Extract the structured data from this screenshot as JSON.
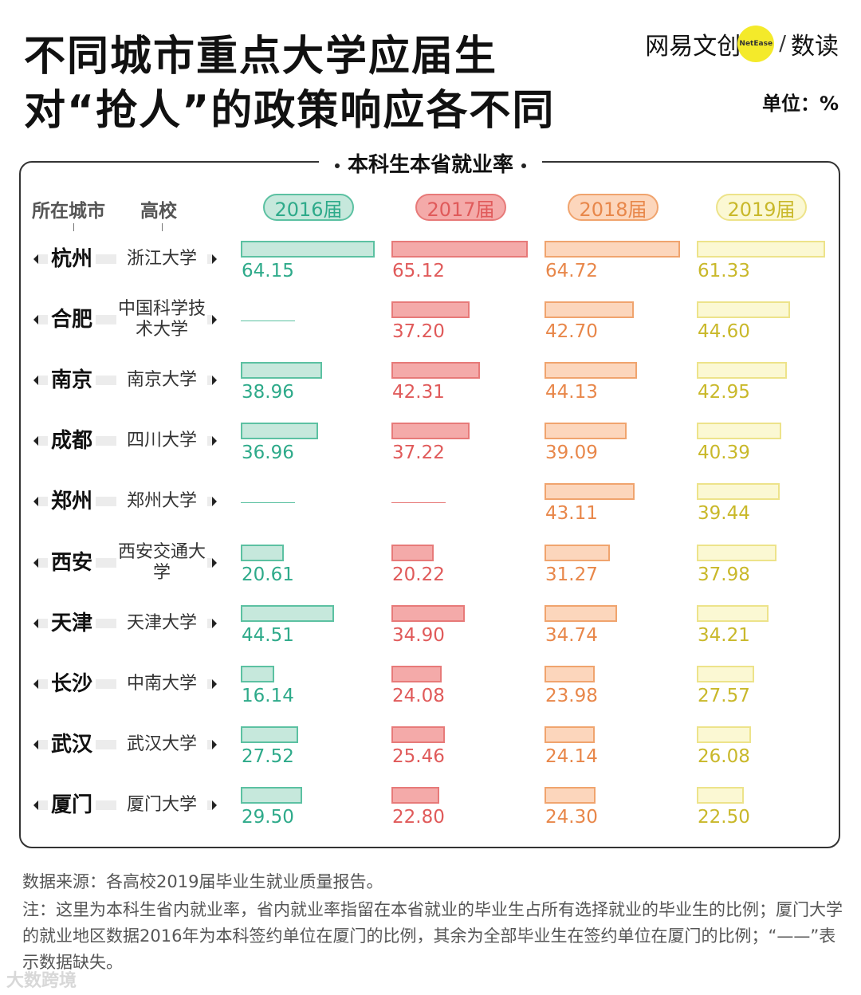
{
  "title_line1": "不同城市重点大学应届生",
  "title_line2": "对“抢人”的政策响应各不同",
  "logo": {
    "brand": "网易文创",
    "badge": "NetEase",
    "slash": "/",
    "sub": "数读"
  },
  "unit": "单位：%",
  "colors": {
    "2016": {
      "fill": "#c6e8dc",
      "stroke": "#5cc1a2",
      "text": "#2eaa8a"
    },
    "2017": {
      "fill": "#f4aaa9",
      "stroke": "#e77a79",
      "text": "#e05a5a"
    },
    "2018": {
      "fill": "#fcd6bc",
      "stroke": "#f0a46e",
      "text": "#e8874a"
    },
    "2019": {
      "fill": "#fbf8d3",
      "stroke": "#ede38a",
      "text": "#c9b82a"
    }
  },
  "chart_data": {
    "type": "bar",
    "title": "本科生本省就业率",
    "column_labels": {
      "city": "所在城市",
      "school": "高校"
    },
    "series_labels": [
      "2016届",
      "2017届",
      "2018届",
      "2019届"
    ],
    "categories": [
      {
        "city": "杭州",
        "school": "浙江大学"
      },
      {
        "city": "合肥",
        "school": "中国科学技术大学"
      },
      {
        "city": "南京",
        "school": "南京大学"
      },
      {
        "city": "成都",
        "school": "四川大学"
      },
      {
        "city": "郑州",
        "school": "郑州大学"
      },
      {
        "city": "西安",
        "school": "西安交通大学"
      },
      {
        "city": "天津",
        "school": "天津大学"
      },
      {
        "city": "长沙",
        "school": "中南大学"
      },
      {
        "city": "武汉",
        "school": "武汉大学"
      },
      {
        "city": "厦门",
        "school": "厦门大学"
      }
    ],
    "series": [
      {
        "name": "2016届",
        "key": "2016",
        "values": [
          "64.15",
          null,
          "38.96",
          "36.96",
          null,
          "20.61",
          "44.51",
          "16.14",
          "27.52",
          "29.50"
        ]
      },
      {
        "name": "2017届",
        "key": "2017",
        "values": [
          "65.12",
          "37.20",
          "42.31",
          "37.22",
          null,
          "20.22",
          "34.90",
          "24.08",
          "25.46",
          "22.80"
        ]
      },
      {
        "name": "2018届",
        "key": "2018",
        "values": [
          "64.72",
          "42.70",
          "44.13",
          "39.09",
          "43.11",
          "31.27",
          "34.74",
          "23.98",
          "24.14",
          "24.30"
        ]
      },
      {
        "name": "2019届",
        "key": "2019",
        "values": [
          "61.33",
          "44.60",
          "42.95",
          "40.39",
          "39.44",
          "37.98",
          "34.21",
          "27.57",
          "26.08",
          "22.50"
        ]
      }
    ],
    "ylim": [
      0,
      65.12
    ]
  },
  "source": "数据来源：各高校2019届毕业生就业质量报告。",
  "note": "注：这里为本科生省内就业率，省内就业率指留在本省就业的毕业生占所有选择就业的毕业生的比例；厦门大学的就业地区数据2016年为本科签约单位在厦门的比例，其余为全部毕业生在签约单位在厦门的比例；“——”表示数据缺失。",
  "watermark": "大数跨境"
}
